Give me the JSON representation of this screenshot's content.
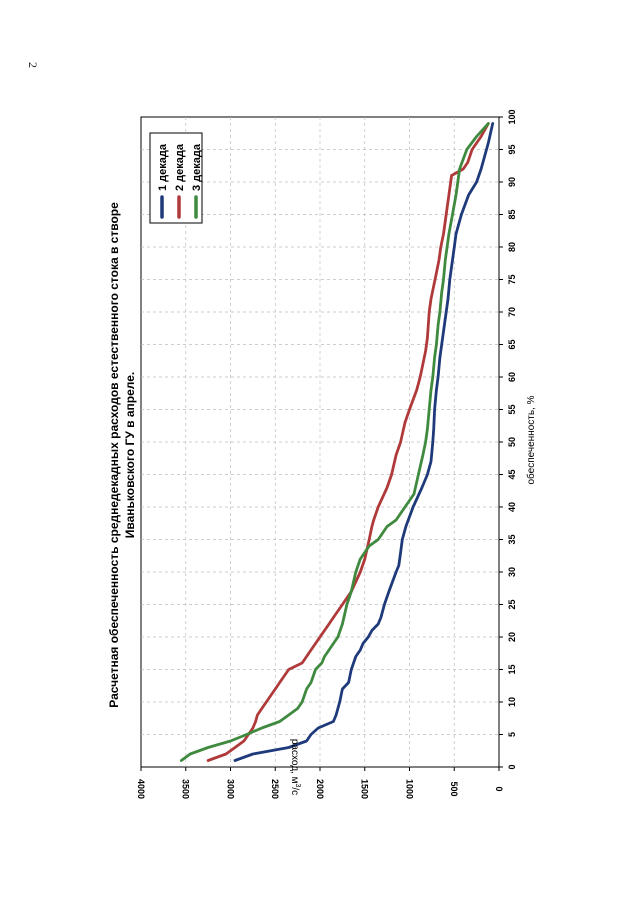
{
  "page": {
    "number": "2"
  },
  "chart_data": {
    "type": "line",
    "title": "Расчетная обеспеченность среднедекадных расходов естественного стока в створе",
    "subtitle": "Иваньковского ГУ в апреле.",
    "xlabel": "обеспеченность, %",
    "ylabel_main": "расход, м",
    "ylabel_sup": "3",
    "ylabel_tail": "/с",
    "xlim": [
      0,
      100
    ],
    "ylim": [
      0,
      4000
    ],
    "x_ticks": [
      0,
      5,
      10,
      15,
      20,
      25,
      30,
      35,
      40,
      45,
      50,
      55,
      60,
      65,
      70,
      75,
      80,
      85,
      90,
      95,
      100
    ],
    "y_ticks": [
      0,
      500,
      1000,
      1500,
      2000,
      2500,
      3000,
      3500,
      4000
    ],
    "grid": true,
    "legend_position": "top-right",
    "series": [
      {
        "name": "1 декада",
        "color": "#1f3a7a",
        "x": [
          1,
          2,
          3,
          4,
          5,
          6,
          7,
          8,
          10,
          12,
          13,
          15,
          17,
          18,
          19,
          20,
          21,
          22,
          23,
          25,
          27,
          30,
          31,
          33,
          35,
          37,
          40,
          43,
          45,
          47,
          50,
          52,
          55,
          58,
          60,
          63,
          65,
          68,
          70,
          72,
          75,
          78,
          80,
          82,
          85,
          88,
          90,
          92,
          94,
          96,
          99
        ],
        "values": [
          2950,
          2750,
          2350,
          2150,
          2100,
          2020,
          1850,
          1820,
          1780,
          1750,
          1680,
          1650,
          1600,
          1550,
          1520,
          1460,
          1420,
          1350,
          1320,
          1280,
          1230,
          1150,
          1120,
          1100,
          1080,
          1040,
          960,
          860,
          800,
          760,
          740,
          730,
          720,
          700,
          680,
          660,
          640,
          610,
          590,
          570,
          550,
          520,
          500,
          480,
          420,
          340,
          250,
          200,
          160,
          120,
          70
        ]
      },
      {
        "name": "2 декада",
        "color": "#b03a3a",
        "x": [
          1,
          2,
          3,
          4,
          5,
          6,
          7,
          8,
          10,
          11,
          12,
          13,
          14,
          15,
          16,
          17,
          18,
          19,
          20,
          21,
          22,
          23,
          25,
          27,
          30,
          32,
          35,
          37,
          38,
          40,
          43,
          45,
          48,
          50,
          53,
          55,
          58,
          60,
          62,
          64,
          66,
          70,
          72,
          74,
          76,
          78,
          80,
          82,
          84,
          86,
          88,
          90,
          91,
          92,
          93,
          95,
          97,
          99
        ],
        "values": [
          3250,
          3050,
          2950,
          2850,
          2800,
          2750,
          2720,
          2700,
          2600,
          2550,
          2500,
          2450,
          2400,
          2350,
          2200,
          2150,
          2100,
          2050,
          2000,
          1950,
          1900,
          1850,
          1750,
          1650,
          1550,
          1500,
          1450,
          1420,
          1400,
          1350,
          1250,
          1200,
          1150,
          1100,
          1050,
          1000,
          920,
          880,
          850,
          820,
          800,
          780,
          760,
          730,
          700,
          670,
          650,
          620,
          600,
          580,
          560,
          540,
          530,
          400,
          350,
          300,
          200,
          120
        ]
      },
      {
        "name": "3 декада",
        "color": "#3f8a3f",
        "x": [
          1,
          2,
          3,
          4,
          5,
          6,
          7,
          8,
          9,
          10,
          12,
          13,
          15,
          16,
          17,
          18,
          19,
          20,
          22,
          25,
          27,
          30,
          32,
          34,
          35,
          37,
          38,
          40,
          42,
          45,
          48,
          50,
          52,
          55,
          58,
          60,
          63,
          65,
          68,
          70,
          73,
          75,
          78,
          80,
          82,
          85,
          88,
          90,
          92,
          95,
          97,
          99
        ],
        "values": [
          3550,
          3450,
          3250,
          3000,
          2820,
          2650,
          2450,
          2350,
          2250,
          2200,
          2150,
          2100,
          2050,
          1980,
          1950,
          1900,
          1850,
          1800,
          1750,
          1700,
          1650,
          1600,
          1550,
          1450,
          1350,
          1250,
          1150,
          1050,
          950,
          900,
          850,
          820,
          800,
          780,
          760,
          740,
          720,
          700,
          680,
          660,
          640,
          620,
          600,
          580,
          560,
          520,
          480,
          460,
          440,
          360,
          250,
          120
        ]
      }
    ]
  }
}
